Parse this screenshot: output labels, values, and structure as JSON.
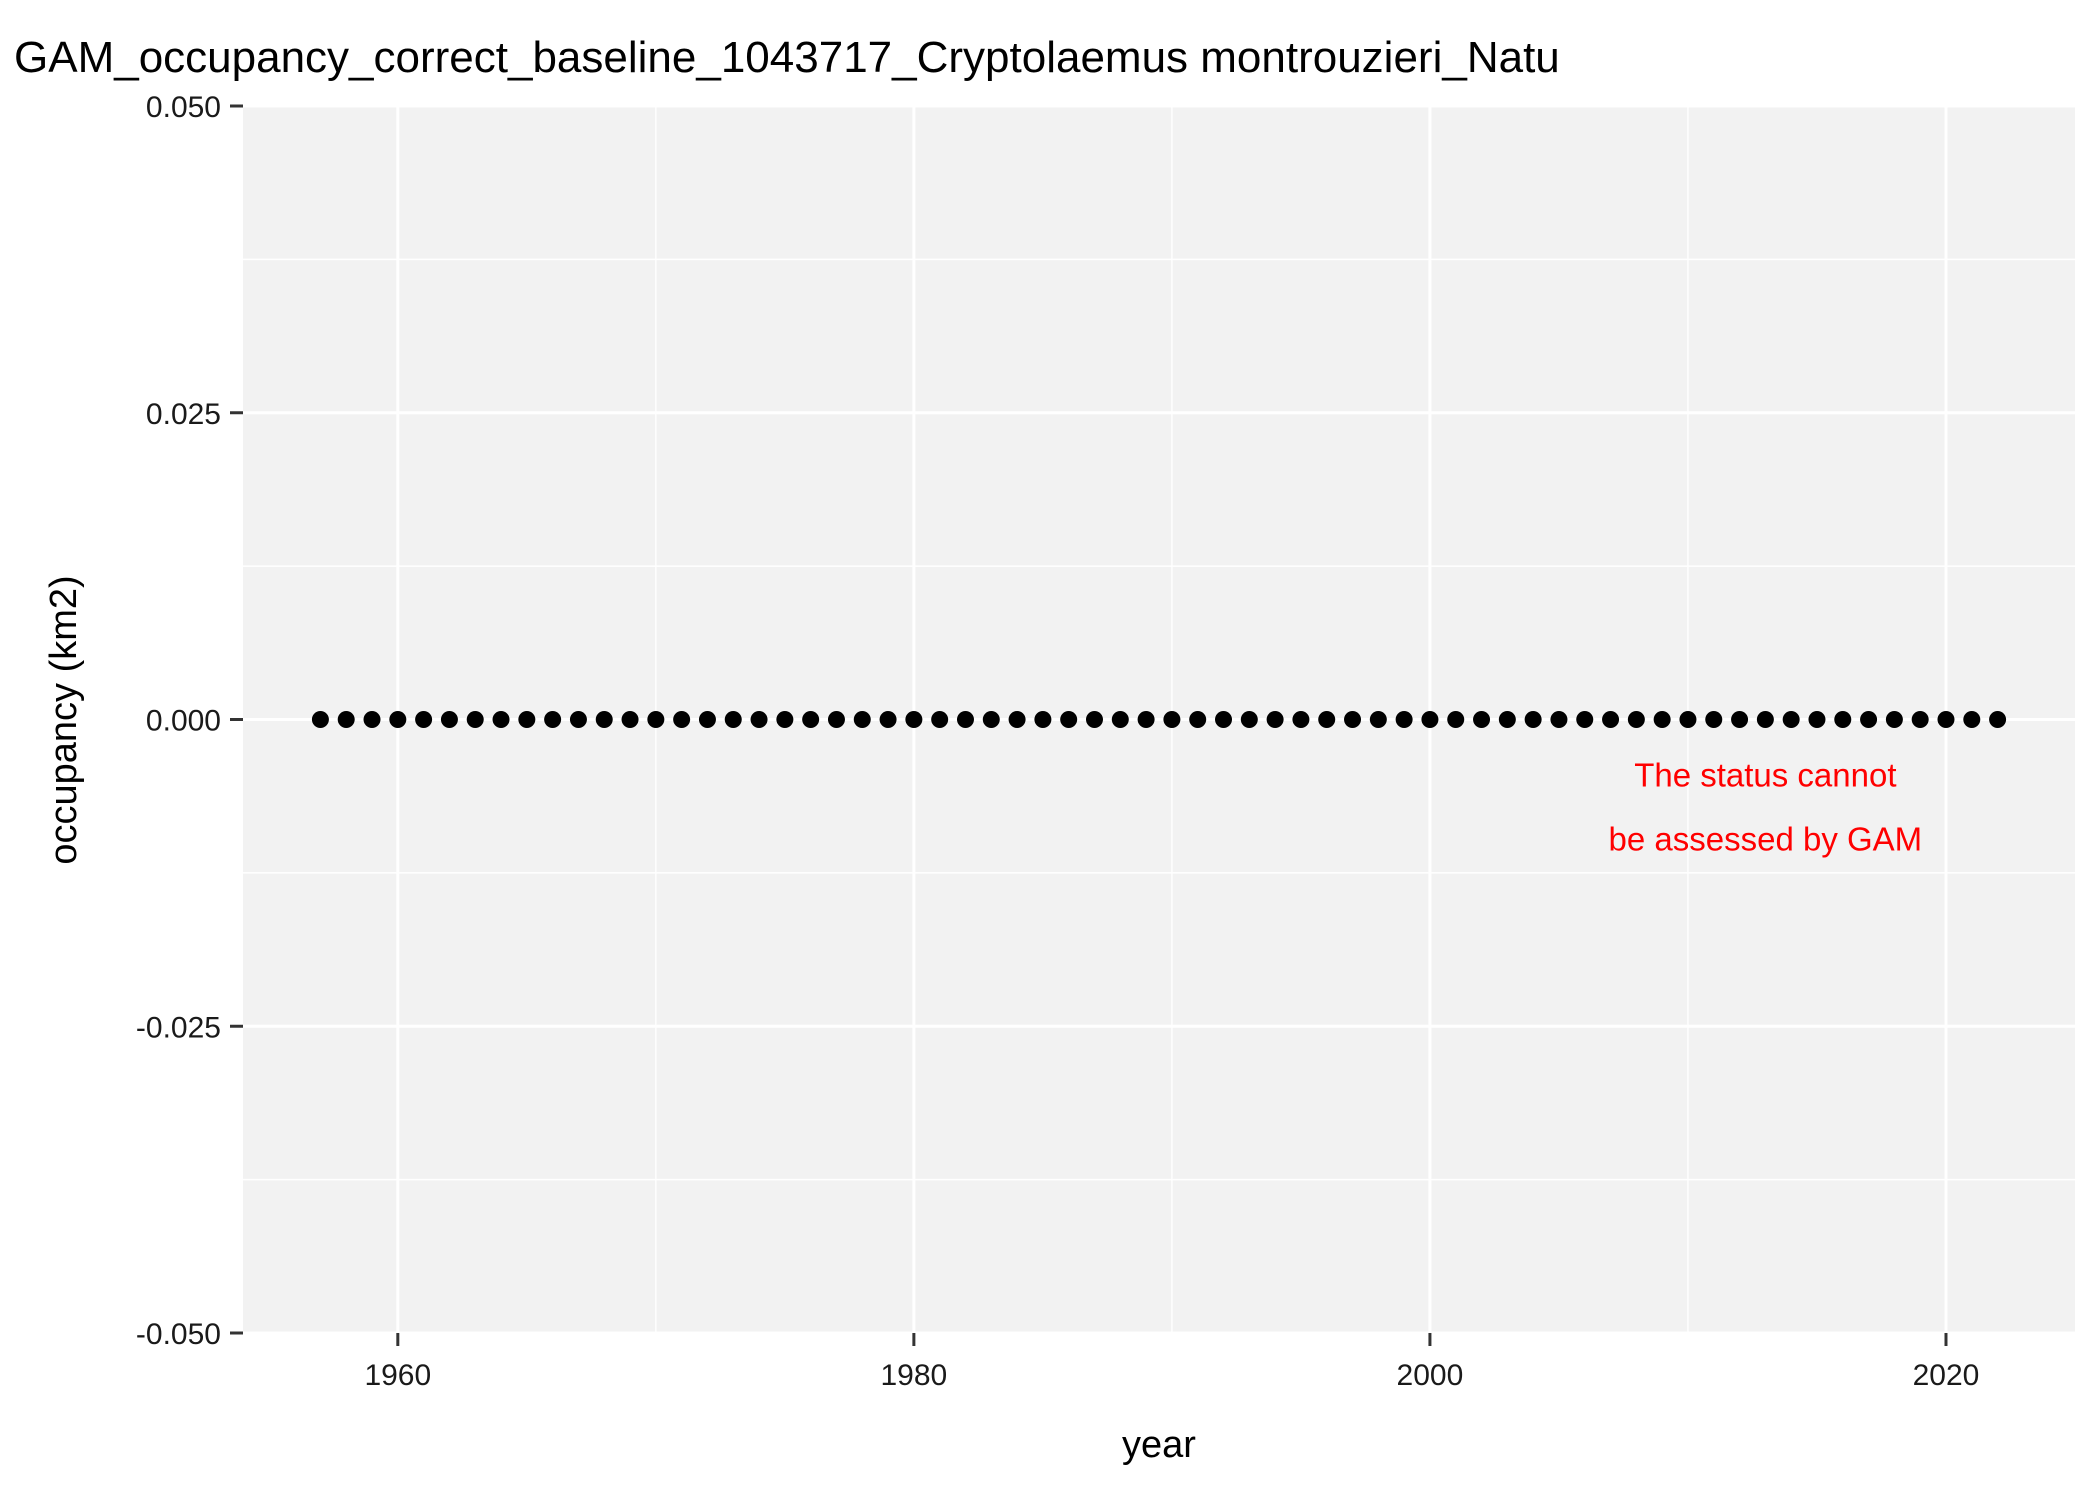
{
  "chart_data": {
    "type": "scatter",
    "title": "GAM_occupancy_correct_baseline_1043717_Cryptolaemus montrouzieri_Natu",
    "xlabel": "year",
    "ylabel": "occupancy (km2)",
    "xlim": [
      1954,
      2025
    ],
    "ylim": [
      -0.05,
      0.05
    ],
    "x_ticks": [
      1960,
      1980,
      2000,
      2020
    ],
    "x_tick_labels": [
      "1960",
      "1980",
      "2000",
      "2020"
    ],
    "y_ticks": [
      -0.05,
      -0.025,
      0,
      0.025,
      0.05
    ],
    "y_tick_labels": [
      "-0.050",
      "-0.025",
      "0.000",
      "0.025",
      "0.050"
    ],
    "grid": true,
    "panel_background": "#f2f2f2",
    "grid_color": "#ffffff",
    "point_color": "#000000",
    "annotation": {
      "lines": [
        "The status cannot",
        "be assessed by GAM"
      ],
      "color": "#ff0000",
      "x": 2013,
      "y": -0.0045
    },
    "series": [
      {
        "x_start": 1957,
        "x_end": 2022,
        "y_value": 0
      }
    ]
  }
}
